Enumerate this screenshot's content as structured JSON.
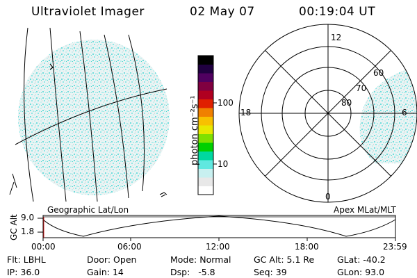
{
  "header": {
    "title": "Ultraviolet Imager",
    "date": "02 May 07",
    "time": "00:19:04 UT"
  },
  "colorbar": {
    "label": "photon cm⁻²s⁻¹",
    "ticks": [
      "100",
      "10"
    ],
    "colors": [
      "#ffffff",
      "#e8e8e8",
      "#c8f0f0",
      "#60e8e0",
      "#00d8a0",
      "#00d000",
      "#80e000",
      "#e8e800",
      "#f8c000",
      "#f08000",
      "#e02000",
      "#b00020",
      "#800040",
      "#500060",
      "#200040",
      "#000000"
    ]
  },
  "geo_panel": {
    "caption": "Geographic Lat/Lon"
  },
  "polar_panel": {
    "caption": "Apex MLat/MLT",
    "mlt_labels": {
      "top": "12",
      "bottom": "0",
      "left": "18",
      "right": "6"
    },
    "lat_labels": [
      "60",
      "70",
      "80"
    ]
  },
  "altitude_plot": {
    "ylabel": "GC Alt",
    "yticks": [
      "9.0",
      "1.8"
    ],
    "xticks": [
      "00:00",
      "06:00",
      "12:00",
      "18:00",
      "23:59"
    ]
  },
  "status": {
    "filter": {
      "label": "Flt:",
      "value": "LBHL"
    },
    "ip": {
      "label": "IP:",
      "value": "36.0"
    },
    "door": {
      "label": "Door:",
      "value": "Open"
    },
    "gain": {
      "label": "Gain:",
      "value": "14"
    },
    "mode": {
      "label": "Mode:",
      "value": "Normal"
    },
    "dsp": {
      "label": "Dsp:",
      "value": "-5.8"
    },
    "gc_alt": {
      "label": "GC Alt:",
      "value": "5.1 Re"
    },
    "seq": {
      "label": "Seq:",
      "value": "39"
    },
    "glat": {
      "label": "GLat:",
      "value": "-40.2"
    },
    "glon": {
      "label": "GLon:",
      "value": "93.0"
    }
  }
}
